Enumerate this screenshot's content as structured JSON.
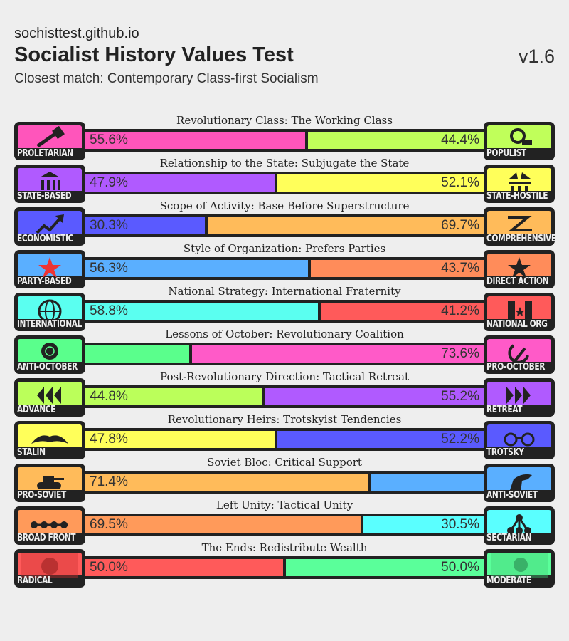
{
  "header": {
    "site": "sochisttest.github.io",
    "title": "Socialist History Values Test",
    "version": "v1.6",
    "closest_match": "Closest match: Contemporary Class-first Socialism"
  },
  "axes": [
    {
      "title": "Revolutionary Class: The Working Class",
      "left": {
        "name": "PROLETARIAN",
        "icon": "hammer-icon",
        "color": "#ff55bb"
      },
      "right": {
        "name": "POPULIST",
        "icon": "magnifier-icon",
        "color": "#c0ff5a"
      },
      "left_value": 55.6,
      "right_value": 44.4,
      "left_label": "55.6%",
      "right_label": "44.4%"
    },
    {
      "title": "Relationship to the State: Subjugate the State",
      "left": {
        "name": "STATE-BASED",
        "icon": "government-building-icon",
        "color": "#b05aff"
      },
      "right": {
        "name": "STATE-HOSTILE",
        "icon": "broken-building-icon",
        "color": "#ffff5a"
      },
      "left_value": 47.9,
      "right_value": 52.1,
      "left_label": "47.9%",
      "right_label": "52.1%"
    },
    {
      "title": "Scope of Activity: Base Before Superstructure",
      "left": {
        "name": "ECONOMISTIC",
        "icon": "trend-arrow-icon",
        "color": "#5a5aff"
      },
      "right": {
        "name": "COMPREHENSIVE",
        "icon": "crossing-arrows-icon",
        "color": "#ffbb5a"
      },
      "left_value": 30.3,
      "right_value": 69.7,
      "left_label": "30.3%",
      "right_label": "69.7%"
    },
    {
      "title": "Style of Organization: Prefers Parties",
      "left": {
        "name": "PARTY-BASED",
        "icon": "red-star-icon",
        "color": "#5aafff"
      },
      "right": {
        "name": "DIRECT ACTION",
        "icon": "black-star-icon",
        "color": "#ff8c5a"
      },
      "left_value": 56.3,
      "right_value": 43.7,
      "left_label": "56.3%",
      "right_label": "43.7%"
    },
    {
      "title": "National Strategy: International Fraternity",
      "left": {
        "name": "INTERNATIONAL",
        "icon": "globe-icon",
        "color": "#5afff0"
      },
      "right": {
        "name": "NATIONAL ORG",
        "icon": "flag-icon",
        "color": "#ff5a5a"
      },
      "left_value": 58.8,
      "right_value": 41.2,
      "left_label": "58.8%",
      "right_label": "41.2%"
    },
    {
      "title": "Lessons of October: Revolutionary Coalition",
      "left": {
        "name": "ANTI-OCTOBER",
        "icon": "rose-icon",
        "color": "#5aff8c"
      },
      "right": {
        "name": "PRO-OCTOBER",
        "icon": "hammer-sickle-icon",
        "color": "#ff5ac8"
      },
      "left_value": 26.4,
      "right_value": 73.6,
      "left_label": null,
      "right_label": "73.6%"
    },
    {
      "title": "Post-Revolutionary Direction: Tactical Retreat",
      "left": {
        "name": "ADVANCE",
        "icon": "triple-left-arrow-icon",
        "color": "#bbff5a"
      },
      "right": {
        "name": "RETREAT",
        "icon": "triple-right-arrow-icon",
        "color": "#b05aff"
      },
      "left_value": 44.8,
      "right_value": 55.2,
      "left_label": "44.8%",
      "right_label": "55.2%"
    },
    {
      "title": "Revolutionary Heirs: Trotskyist Tendencies",
      "left": {
        "name": "STALIN",
        "icon": "moustache-icon",
        "color": "#ffff5a"
      },
      "right": {
        "name": "TROTSKY",
        "icon": "glasses-icon",
        "color": "#5a5aff"
      },
      "left_value": 47.8,
      "right_value": 52.2,
      "left_label": "47.8%",
      "right_label": "52.2%"
    },
    {
      "title": "Soviet Bloc: Critical Support",
      "left": {
        "name": "PRO-SOVIET",
        "icon": "tank-icon",
        "color": "#ffbb5a"
      },
      "right": {
        "name": "ANTI-SOVIET",
        "icon": "fist-icon",
        "color": "#5aafff"
      },
      "left_value": 71.4,
      "right_value": 28.6,
      "left_label": "71.4%",
      "right_label": null
    },
    {
      "title": "Left Unity: Tactical Unity",
      "left": {
        "name": "BROAD FRONT",
        "icon": "linked-dots-icon",
        "color": "#ff9a5a"
      },
      "right": {
        "name": "SECTARIAN",
        "icon": "tree-nodes-icon",
        "color": "#5affff"
      },
      "left_value": 69.5,
      "right_value": 30.5,
      "left_label": "69.5%",
      "right_label": "30.5%"
    },
    {
      "title": "The Ends: Redistribute Wealth",
      "left": {
        "name": "RADICAL",
        "icon": "marx-portrait-icon",
        "color": "#ff5a5a"
      },
      "right": {
        "name": "MODERATE",
        "icon": "portrait-icon",
        "color": "#5aff9a"
      },
      "left_value": 50.0,
      "right_value": 50.0,
      "left_label": "50.0%",
      "right_label": "50.0%"
    }
  ]
}
